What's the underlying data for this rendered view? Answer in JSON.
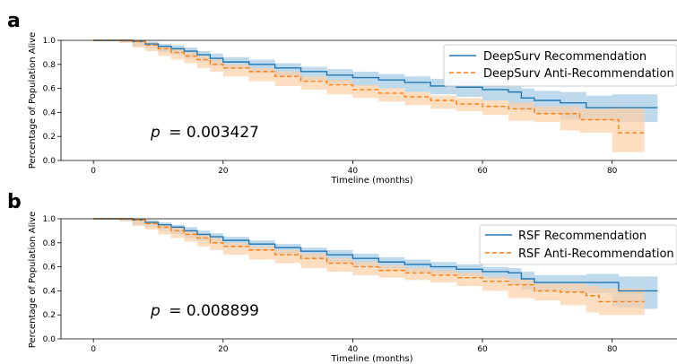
{
  "colors": {
    "recommendation": "#1f77b4",
    "anti_recommendation": "#ff7f0e",
    "recommendation_band": "#a9cce6",
    "anti_band": "#fdd0a6"
  },
  "chart_data": [
    {
      "panel": "a",
      "type": "line",
      "xlabel": "Timeline (months)",
      "ylabel": "Percentage of Population Alive",
      "xlim": [
        -5,
        90
      ],
      "ylim": [
        0,
        1.0
      ],
      "x_ticks": [
        0,
        20,
        40,
        60,
        80
      ],
      "y_ticks": [
        "0.0",
        "0.2",
        "0.4",
        "0.6",
        "0.8",
        "1.0"
      ],
      "p_prefix": "p",
      "p_value": "= 0.003427",
      "legend_position": "top-right",
      "series": [
        {
          "name": "DeepSurv Recommendation",
          "style": "solid",
          "x": [
            0,
            4,
            6,
            8,
            10,
            12,
            14,
            16,
            18,
            20,
            24,
            28,
            32,
            36,
            40,
            44,
            48,
            52,
            56,
            60,
            64,
            66,
            68,
            72,
            76,
            80,
            84,
            87
          ],
          "y": [
            1.0,
            1.0,
            0.99,
            0.97,
            0.95,
            0.93,
            0.91,
            0.88,
            0.85,
            0.82,
            0.8,
            0.77,
            0.74,
            0.71,
            0.69,
            0.67,
            0.65,
            0.62,
            0.61,
            0.59,
            0.57,
            0.52,
            0.5,
            0.48,
            0.44,
            0.44,
            0.44,
            0.44
          ],
          "ci_lower": [
            1.0,
            1.0,
            0.98,
            0.95,
            0.93,
            0.9,
            0.88,
            0.85,
            0.82,
            0.79,
            0.76,
            0.73,
            0.7,
            0.67,
            0.64,
            0.62,
            0.6,
            0.57,
            0.55,
            0.53,
            0.5,
            0.44,
            0.42,
            0.39,
            0.34,
            0.33,
            0.32,
            0.32
          ],
          "ci_upper": [
            1.0,
            1.0,
            1.0,
            0.99,
            0.97,
            0.96,
            0.94,
            0.91,
            0.89,
            0.86,
            0.84,
            0.81,
            0.78,
            0.76,
            0.74,
            0.72,
            0.7,
            0.68,
            0.67,
            0.65,
            0.63,
            0.6,
            0.58,
            0.57,
            0.54,
            0.55,
            0.55,
            0.55
          ]
        },
        {
          "name": "DeepSurv Anti-Recommendation",
          "style": "dashed",
          "x": [
            0,
            4,
            6,
            8,
            10,
            12,
            14,
            16,
            18,
            20,
            24,
            28,
            32,
            36,
            40,
            44,
            48,
            52,
            56,
            60,
            64,
            68,
            72,
            75,
            80,
            81,
            85
          ],
          "y": [
            1.0,
            1.0,
            0.99,
            0.96,
            0.93,
            0.9,
            0.87,
            0.84,
            0.8,
            0.77,
            0.74,
            0.7,
            0.66,
            0.63,
            0.59,
            0.56,
            0.53,
            0.5,
            0.47,
            0.45,
            0.43,
            0.39,
            0.39,
            0.34,
            0.34,
            0.23,
            0.23
          ],
          "ci_lower": [
            1.0,
            1.0,
            0.98,
            0.94,
            0.91,
            0.87,
            0.84,
            0.81,
            0.77,
            0.74,
            0.7,
            0.66,
            0.62,
            0.59,
            0.55,
            0.52,
            0.49,
            0.46,
            0.43,
            0.41,
            0.38,
            0.33,
            0.32,
            0.25,
            0.23,
            0.07,
            0.07
          ],
          "ci_upper": [
            1.0,
            1.0,
            1.0,
            0.98,
            0.95,
            0.93,
            0.9,
            0.87,
            0.84,
            0.8,
            0.77,
            0.74,
            0.7,
            0.67,
            0.63,
            0.6,
            0.57,
            0.54,
            0.52,
            0.5,
            0.48,
            0.45,
            0.45,
            0.43,
            0.45,
            0.44,
            0.44
          ]
        }
      ]
    },
    {
      "panel": "b",
      "type": "line",
      "xlabel": "Timeline (months)",
      "ylabel": "Percentage of Population Alive",
      "xlim": [
        -5,
        90
      ],
      "ylim": [
        0,
        1.0
      ],
      "x_ticks": [
        0,
        20,
        40,
        60,
        80
      ],
      "y_ticks": [
        "0.0",
        "0.2",
        "0.4",
        "0.6",
        "0.8",
        "1.0"
      ],
      "p_prefix": "p",
      "p_value": "= 0.008899",
      "legend_position": "top-right",
      "series": [
        {
          "name": "RSF Recommendation",
          "style": "solid",
          "x": [
            0,
            4,
            6,
            8,
            10,
            12,
            14,
            16,
            18,
            20,
            24,
            28,
            32,
            36,
            40,
            44,
            48,
            52,
            56,
            60,
            64,
            66,
            68,
            72,
            76,
            80,
            81,
            84,
            87
          ],
          "y": [
            1.0,
            1.0,
            0.99,
            0.97,
            0.95,
            0.93,
            0.9,
            0.87,
            0.85,
            0.82,
            0.79,
            0.76,
            0.73,
            0.7,
            0.67,
            0.64,
            0.62,
            0.6,
            0.58,
            0.56,
            0.55,
            0.5,
            0.47,
            0.47,
            0.47,
            0.47,
            0.4,
            0.4,
            0.4
          ],
          "ci_lower": [
            1.0,
            1.0,
            0.98,
            0.95,
            0.93,
            0.9,
            0.87,
            0.84,
            0.82,
            0.79,
            0.76,
            0.73,
            0.7,
            0.66,
            0.63,
            0.6,
            0.58,
            0.56,
            0.54,
            0.52,
            0.5,
            0.45,
            0.41,
            0.4,
            0.39,
            0.38,
            0.27,
            0.26,
            0.25
          ],
          "ci_upper": [
            1.0,
            1.0,
            1.0,
            0.99,
            0.97,
            0.95,
            0.93,
            0.9,
            0.88,
            0.85,
            0.82,
            0.79,
            0.76,
            0.74,
            0.71,
            0.68,
            0.66,
            0.64,
            0.62,
            0.6,
            0.59,
            0.56,
            0.53,
            0.53,
            0.54,
            0.54,
            0.52,
            0.52,
            0.52
          ]
        },
        {
          "name": "RSF Anti-Recommendation",
          "style": "dashed",
          "x": [
            0,
            4,
            6,
            8,
            10,
            12,
            14,
            16,
            18,
            20,
            24,
            28,
            32,
            36,
            40,
            44,
            48,
            52,
            56,
            60,
            64,
            68,
            72,
            76,
            78,
            85
          ],
          "y": [
            1.0,
            1.0,
            0.99,
            0.96,
            0.93,
            0.9,
            0.87,
            0.84,
            0.8,
            0.77,
            0.74,
            0.7,
            0.67,
            0.63,
            0.6,
            0.57,
            0.55,
            0.53,
            0.51,
            0.48,
            0.45,
            0.4,
            0.39,
            0.36,
            0.31,
            0.31
          ],
          "ci_lower": [
            1.0,
            1.0,
            0.98,
            0.94,
            0.91,
            0.87,
            0.84,
            0.81,
            0.77,
            0.74,
            0.7,
            0.66,
            0.63,
            0.59,
            0.56,
            0.53,
            0.51,
            0.49,
            0.47,
            0.44,
            0.4,
            0.34,
            0.32,
            0.28,
            0.22,
            0.2
          ],
          "ci_upper": [
            1.0,
            1.0,
            1.0,
            0.98,
            0.95,
            0.93,
            0.9,
            0.87,
            0.84,
            0.8,
            0.77,
            0.74,
            0.71,
            0.67,
            0.64,
            0.61,
            0.59,
            0.57,
            0.55,
            0.52,
            0.5,
            0.46,
            0.46,
            0.44,
            0.42,
            0.42
          ]
        }
      ]
    }
  ]
}
